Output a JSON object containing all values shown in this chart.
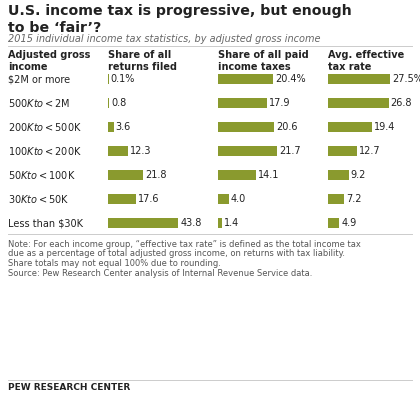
{
  "title": "U.S. income tax is progressive, but enough\nto be ‘fair’?",
  "subtitle": "2015 individual income tax statistics, by adjusted gross income",
  "categories": [
    "$2M or more",
    "$500K to <$2M",
    "$200K to <$500K",
    "$100K to <$200K",
    "$50K to <$100K",
    "$30K to <$50K",
    "Less than $30K"
  ],
  "col_headers": [
    "Adjusted gross\nincome",
    "Share of all\nreturns filed",
    "Share of all paid\nincome taxes",
    "Avg. effective\ntax rate"
  ],
  "returns_filed": [
    0.1,
    0.8,
    3.6,
    12.3,
    21.8,
    17.6,
    43.8
  ],
  "returns_labels": [
    "0.1%",
    "0.8",
    "3.6",
    "12.3",
    "21.8",
    "17.6",
    "43.8"
  ],
  "income_taxes": [
    20.4,
    17.9,
    20.6,
    21.7,
    14.1,
    4.0,
    1.4
  ],
  "income_labels": [
    "20.4%",
    "17.9",
    "20.6",
    "21.7",
    "14.1",
    "4.0",
    "1.4"
  ],
  "tax_rate": [
    27.5,
    26.8,
    19.4,
    12.7,
    9.2,
    7.2,
    4.9
  ],
  "rate_labels": [
    "27.5%",
    "26.8",
    "19.4",
    "12.7",
    "9.2",
    "7.2",
    "4.9"
  ],
  "bar_color": "#8a9a2e",
  "note1": "Note: For each income group, “effective tax rate” is defined as the total income tax",
  "note2": "due as a percentage of total adjusted gross income, on returns with tax liability.",
  "note3": "Share totals may not equal 100% due to rounding.",
  "note4": "Source: Pew Research Center analysis of Internal Revenue Service data.",
  "footer": "PEW RESEARCH CENTER",
  "background_color": "#ffffff"
}
